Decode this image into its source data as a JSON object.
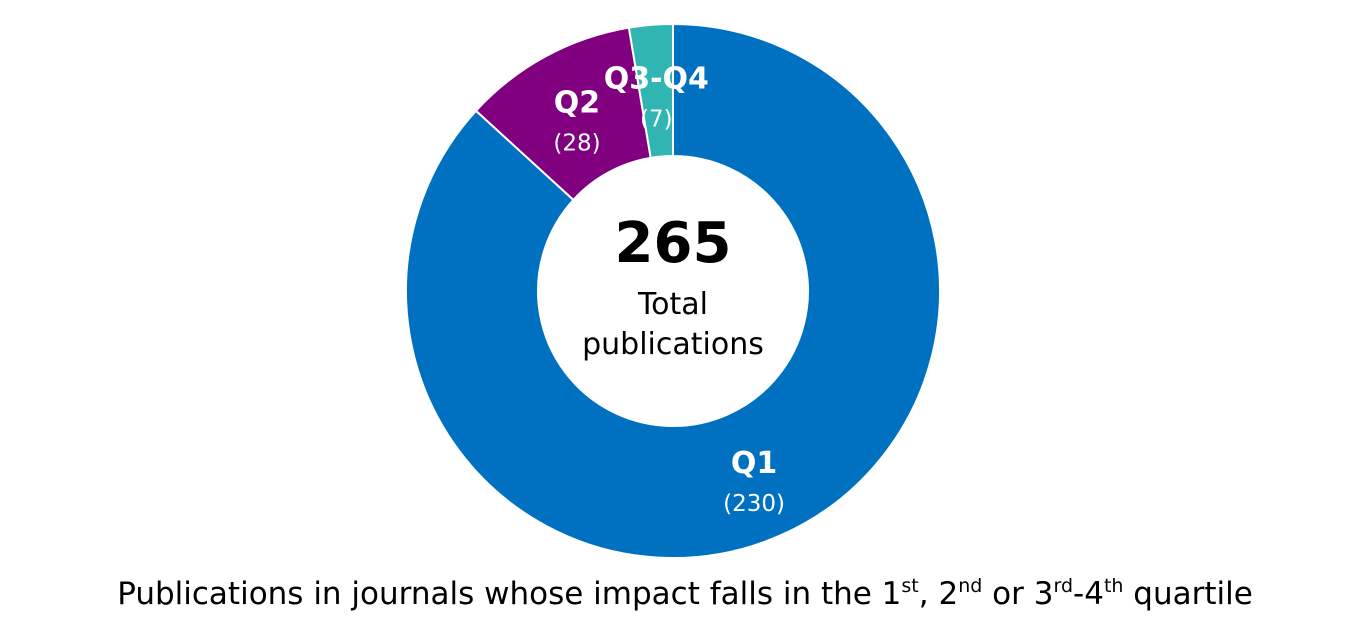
{
  "chart_data": {
    "type": "donut",
    "title": "",
    "center": {
      "value": "265",
      "label_line1": "Total",
      "label_line2": "publications"
    },
    "slices": [
      {
        "label": "Q1",
        "count_label": "(230)",
        "value": 230,
        "color": "#0070C0"
      },
      {
        "label": "Q2",
        "count_label": "(28)",
        "value": 28,
        "color": "#800080"
      },
      {
        "label": "Q3-Q4",
        "count_label": "(7)",
        "value": 7,
        "color": "#30B5B2"
      }
    ]
  },
  "caption": {
    "part1": "Publications in journals whose impact falls in the 1",
    "sup1": "st",
    "part2": ", 2",
    "sup2": "nd",
    "part3": " or 3",
    "sup3": "rd",
    "part4": "-4",
    "sup4": "th",
    "part5": " quartile"
  }
}
